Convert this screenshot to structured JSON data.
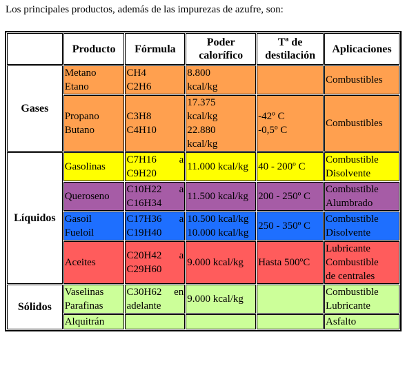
{
  "intro": "Los principales productos, además de las impurezas de azufre, son:",
  "table": {
    "headers": [
      "Producto",
      "Fórmula",
      "Poder calorífico",
      "Tª de destilación",
      "Aplicaciones"
    ],
    "groups": [
      {
        "name": "Gases",
        "rows": [
          {
            "color": "#ffa04f",
            "producto": [
              "Metano",
              "Etano"
            ],
            "formula": [
              "CH4",
              "C2H6"
            ],
            "poder": [
              "8.800",
              "kcal/kg"
            ],
            "aplicaciones": [
              "Combustibles"
            ]
          },
          {
            "color": "#ffa04f",
            "producto": [
              "Propano",
              "Butano"
            ],
            "formula": [
              "C3H8",
              "C4H10"
            ],
            "poder": [
              "17.375",
              "kcal/kg",
              "22.880",
              "kcal/kg"
            ],
            "destilacion": [
              "-42º C",
              "-0,5º C"
            ],
            "aplicaciones": [
              "Combustibles"
            ]
          }
        ]
      },
      {
        "name": "Líquidos",
        "rows": [
          {
            "color": "#ffff00",
            "producto": [
              "Gasolinas"
            ],
            "formula": [
              "C7H16 a C9H20"
            ],
            "poder": [
              "11.000 kcal/kg"
            ],
            "destilacion": [
              "40 - 200º C"
            ],
            "aplicaciones": [
              "Combustible",
              "Disolvente"
            ]
          },
          {
            "color": "#a65ca6",
            "producto": [
              "Queroseno"
            ],
            "formula": [
              "C10H22 a C16H34"
            ],
            "poder": [
              "11.500 kcal/kg"
            ],
            "destilacion": [
              "200 - 250º C"
            ],
            "aplicaciones": [
              "Combustible",
              "Alumbrado"
            ]
          },
          {
            "color": "#1e6fff",
            "producto": [
              "Gasoil",
              "Fueloil"
            ],
            "formula": [
              "C17H36 a C19H40"
            ],
            "poder": [
              "10.500 kcal/kg",
              "10.000 kcal/kg"
            ],
            "destilacion": [
              "250 - 350º C"
            ],
            "aplicaciones": [
              "Combustible",
              "Disolvente"
            ]
          },
          {
            "color": "#ff5c5c",
            "producto": [
              "Aceites"
            ],
            "formula": [
              "C20H42 a C29H60"
            ],
            "poder": [
              "9.000 kcal/kg"
            ],
            "destilacion": [
              "Hasta 500ºC"
            ],
            "aplicaciones": [
              "Lubricante",
              "Combustible",
              "de centrales"
            ]
          }
        ]
      },
      {
        "name": "Sólidos",
        "rows": [
          {
            "color": "#ccff99",
            "producto": [
              "Vaselinas",
              "Parafinas"
            ],
            "formula": [
              "C30H62 en adelante"
            ],
            "poder": [
              "9.000 kcal/kg"
            ],
            "aplicaciones": [
              "Combustible",
              "Lubricante"
            ]
          },
          {
            "color": "#ccff99",
            "producto": [
              "Alquitrán"
            ],
            "aplicaciones": [
              "Asfalto"
            ]
          }
        ]
      }
    ]
  }
}
